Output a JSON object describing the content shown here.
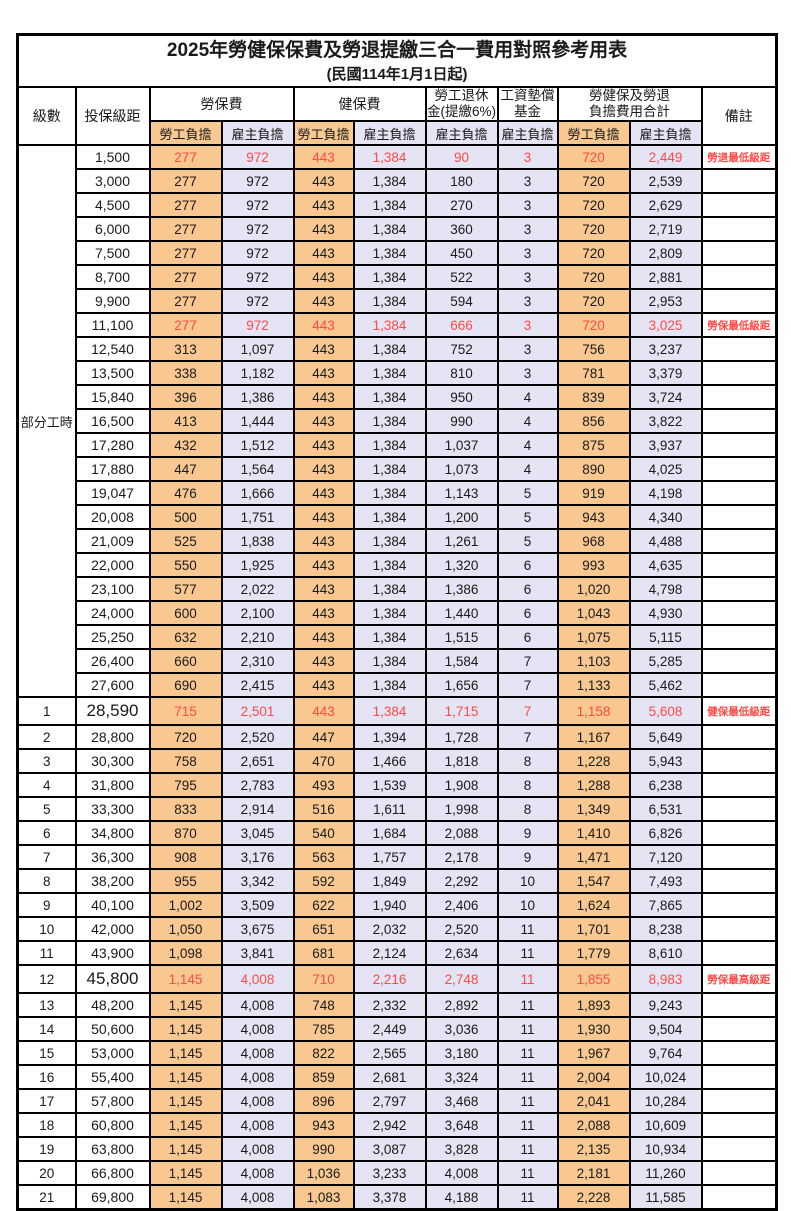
{
  "title": "2025年勞健保保費及勞退提繳三合一費用對照參考用表",
  "subtitle": "(民國114年1月1日起)",
  "colors": {
    "worker_column_bg": "#F8C890",
    "employer_column_bg": "#E4E4F4",
    "highlight_text": "#FF4A46",
    "border": "#000000"
  },
  "header": {
    "level": "級數",
    "bracket": "投保級距",
    "labor_ins": "勞保費",
    "health_ins": "健保費",
    "pension_line1": "勞工退休",
    "pension_line2": "金(提繳6%)",
    "wage_fund_line1": "工資墊償",
    "wage_fund_line2": "基金",
    "total_line1": "勞健保及勞退",
    "total_line2": "負擔費用合計",
    "remark": "備註",
    "worker": "勞工負擔",
    "employer": "雇主負擔"
  },
  "part_time_label": "部分工時",
  "part_time_rowspan": 23,
  "rows": [
    {
      "level": "",
      "bracket": "1,500",
      "values": [
        "277",
        "972",
        "443",
        "1,384",
        "90",
        "3",
        "720",
        "2,449"
      ],
      "remark": "勞退最低級距",
      "hl": true,
      "big": false
    },
    {
      "level": "",
      "bracket": "3,000",
      "values": [
        "277",
        "972",
        "443",
        "1,384",
        "180",
        "3",
        "720",
        "2,539"
      ],
      "remark": "",
      "hl": false,
      "big": false
    },
    {
      "level": "",
      "bracket": "4,500",
      "values": [
        "277",
        "972",
        "443",
        "1,384",
        "270",
        "3",
        "720",
        "2,629"
      ],
      "remark": "",
      "hl": false,
      "big": false
    },
    {
      "level": "",
      "bracket": "6,000",
      "values": [
        "277",
        "972",
        "443",
        "1,384",
        "360",
        "3",
        "720",
        "2,719"
      ],
      "remark": "",
      "hl": false,
      "big": false
    },
    {
      "level": "",
      "bracket": "7,500",
      "values": [
        "277",
        "972",
        "443",
        "1,384",
        "450",
        "3",
        "720",
        "2,809"
      ],
      "remark": "",
      "hl": false,
      "big": false
    },
    {
      "level": "",
      "bracket": "8,700",
      "values": [
        "277",
        "972",
        "443",
        "1,384",
        "522",
        "3",
        "720",
        "2,881"
      ],
      "remark": "",
      "hl": false,
      "big": false
    },
    {
      "level": "",
      "bracket": "9,900",
      "values": [
        "277",
        "972",
        "443",
        "1,384",
        "594",
        "3",
        "720",
        "2,953"
      ],
      "remark": "",
      "hl": false,
      "big": false
    },
    {
      "level": "",
      "bracket": "11,100",
      "values": [
        "277",
        "972",
        "443",
        "1,384",
        "666",
        "3",
        "720",
        "3,025"
      ],
      "remark": "勞保最低級距",
      "hl": true,
      "big": false
    },
    {
      "level": "",
      "bracket": "12,540",
      "values": [
        "313",
        "1,097",
        "443",
        "1,384",
        "752",
        "3",
        "756",
        "3,237"
      ],
      "remark": "",
      "hl": false,
      "big": false
    },
    {
      "level": "",
      "bracket": "13,500",
      "values": [
        "338",
        "1,182",
        "443",
        "1,384",
        "810",
        "3",
        "781",
        "3,379"
      ],
      "remark": "",
      "hl": false,
      "big": false
    },
    {
      "level": "",
      "bracket": "15,840",
      "values": [
        "396",
        "1,386",
        "443",
        "1,384",
        "950",
        "4",
        "839",
        "3,724"
      ],
      "remark": "",
      "hl": false,
      "big": false
    },
    {
      "level": "",
      "bracket": "16,500",
      "values": [
        "413",
        "1,444",
        "443",
        "1,384",
        "990",
        "4",
        "856",
        "3,822"
      ],
      "remark": "",
      "hl": false,
      "big": false
    },
    {
      "level": "",
      "bracket": "17,280",
      "values": [
        "432",
        "1,512",
        "443",
        "1,384",
        "1,037",
        "4",
        "875",
        "3,937"
      ],
      "remark": "",
      "hl": false,
      "big": false
    },
    {
      "level": "",
      "bracket": "17,880",
      "values": [
        "447",
        "1,564",
        "443",
        "1,384",
        "1,073",
        "4",
        "890",
        "4,025"
      ],
      "remark": "",
      "hl": false,
      "big": false
    },
    {
      "level": "",
      "bracket": "19,047",
      "values": [
        "476",
        "1,666",
        "443",
        "1,384",
        "1,143",
        "5",
        "919",
        "4,198"
      ],
      "remark": "",
      "hl": false,
      "big": false
    },
    {
      "level": "",
      "bracket": "20,008",
      "values": [
        "500",
        "1,751",
        "443",
        "1,384",
        "1,200",
        "5",
        "943",
        "4,340"
      ],
      "remark": "",
      "hl": false,
      "big": false
    },
    {
      "level": "",
      "bracket": "21,009",
      "values": [
        "525",
        "1,838",
        "443",
        "1,384",
        "1,261",
        "5",
        "968",
        "4,488"
      ],
      "remark": "",
      "hl": false,
      "big": false
    },
    {
      "level": "",
      "bracket": "22,000",
      "values": [
        "550",
        "1,925",
        "443",
        "1,384",
        "1,320",
        "6",
        "993",
        "4,635"
      ],
      "remark": "",
      "hl": false,
      "big": false
    },
    {
      "level": "",
      "bracket": "23,100",
      "values": [
        "577",
        "2,022",
        "443",
        "1,384",
        "1,386",
        "6",
        "1,020",
        "4,798"
      ],
      "remark": "",
      "hl": false,
      "big": false
    },
    {
      "level": "",
      "bracket": "24,000",
      "values": [
        "600",
        "2,100",
        "443",
        "1,384",
        "1,440",
        "6",
        "1,043",
        "4,930"
      ],
      "remark": "",
      "hl": false,
      "big": false
    },
    {
      "level": "",
      "bracket": "25,250",
      "values": [
        "632",
        "2,210",
        "443",
        "1,384",
        "1,515",
        "6",
        "1,075",
        "5,115"
      ],
      "remark": "",
      "hl": false,
      "big": false
    },
    {
      "level": "",
      "bracket": "26,400",
      "values": [
        "660",
        "2,310",
        "443",
        "1,384",
        "1,584",
        "7",
        "1,103",
        "5,285"
      ],
      "remark": "",
      "hl": false,
      "big": false
    },
    {
      "level": "",
      "bracket": "27,600",
      "values": [
        "690",
        "2,415",
        "443",
        "1,384",
        "1,656",
        "7",
        "1,133",
        "5,462"
      ],
      "remark": "",
      "hl": false,
      "big": false
    },
    {
      "level": "1",
      "bracket": "28,590",
      "values": [
        "715",
        "2,501",
        "443",
        "1,384",
        "1,715",
        "7",
        "1,158",
        "5,608"
      ],
      "remark": "健保最低級距",
      "hl": true,
      "big": true
    },
    {
      "level": "2",
      "bracket": "28,800",
      "values": [
        "720",
        "2,520",
        "447",
        "1,394",
        "1,728",
        "7",
        "1,167",
        "5,649"
      ],
      "remark": "",
      "hl": false,
      "big": false
    },
    {
      "level": "3",
      "bracket": "30,300",
      "values": [
        "758",
        "2,651",
        "470",
        "1,466",
        "1,818",
        "8",
        "1,228",
        "5,943"
      ],
      "remark": "",
      "hl": false,
      "big": false
    },
    {
      "level": "4",
      "bracket": "31,800",
      "values": [
        "795",
        "2,783",
        "493",
        "1,539",
        "1,908",
        "8",
        "1,288",
        "6,238"
      ],
      "remark": "",
      "hl": false,
      "big": false
    },
    {
      "level": "5",
      "bracket": "33,300",
      "values": [
        "833",
        "2,914",
        "516",
        "1,611",
        "1,998",
        "8",
        "1,349",
        "6,531"
      ],
      "remark": "",
      "hl": false,
      "big": false
    },
    {
      "level": "6",
      "bracket": "34,800",
      "values": [
        "870",
        "3,045",
        "540",
        "1,684",
        "2,088",
        "9",
        "1,410",
        "6,826"
      ],
      "remark": "",
      "hl": false,
      "big": false
    },
    {
      "level": "7",
      "bracket": "36,300",
      "values": [
        "908",
        "3,176",
        "563",
        "1,757",
        "2,178",
        "9",
        "1,471",
        "7,120"
      ],
      "remark": "",
      "hl": false,
      "big": false
    },
    {
      "level": "8",
      "bracket": "38,200",
      "values": [
        "955",
        "3,342",
        "592",
        "1,849",
        "2,292",
        "10",
        "1,547",
        "7,493"
      ],
      "remark": "",
      "hl": false,
      "big": false
    },
    {
      "level": "9",
      "bracket": "40,100",
      "values": [
        "1,002",
        "3,509",
        "622",
        "1,940",
        "2,406",
        "10",
        "1,624",
        "7,865"
      ],
      "remark": "",
      "hl": false,
      "big": false
    },
    {
      "level": "10",
      "bracket": "42,000",
      "values": [
        "1,050",
        "3,675",
        "651",
        "2,032",
        "2,520",
        "11",
        "1,701",
        "8,238"
      ],
      "remark": "",
      "hl": false,
      "big": false
    },
    {
      "level": "11",
      "bracket": "43,900",
      "values": [
        "1,098",
        "3,841",
        "681",
        "2,124",
        "2,634",
        "11",
        "1,779",
        "8,610"
      ],
      "remark": "",
      "hl": false,
      "big": false
    },
    {
      "level": "12",
      "bracket": "45,800",
      "values": [
        "1,145",
        "4,008",
        "710",
        "2,216",
        "2,748",
        "11",
        "1,855",
        "8,983"
      ],
      "remark": "勞保最高級距",
      "hl": true,
      "big": true
    },
    {
      "level": "13",
      "bracket": "48,200",
      "values": [
        "1,145",
        "4,008",
        "748",
        "2,332",
        "2,892",
        "11",
        "1,893",
        "9,243"
      ],
      "remark": "",
      "hl": false,
      "big": false
    },
    {
      "level": "14",
      "bracket": "50,600",
      "values": [
        "1,145",
        "4,008",
        "785",
        "2,449",
        "3,036",
        "11",
        "1,930",
        "9,504"
      ],
      "remark": "",
      "hl": false,
      "big": false
    },
    {
      "level": "15",
      "bracket": "53,000",
      "values": [
        "1,145",
        "4,008",
        "822",
        "2,565",
        "3,180",
        "11",
        "1,967",
        "9,764"
      ],
      "remark": "",
      "hl": false,
      "big": false
    },
    {
      "level": "16",
      "bracket": "55,400",
      "values": [
        "1,145",
        "4,008",
        "859",
        "2,681",
        "3,324",
        "11",
        "2,004",
        "10,024"
      ],
      "remark": "",
      "hl": false,
      "big": false
    },
    {
      "level": "17",
      "bracket": "57,800",
      "values": [
        "1,145",
        "4,008",
        "896",
        "2,797",
        "3,468",
        "11",
        "2,041",
        "10,284"
      ],
      "remark": "",
      "hl": false,
      "big": false
    },
    {
      "level": "18",
      "bracket": "60,800",
      "values": [
        "1,145",
        "4,008",
        "943",
        "2,942",
        "3,648",
        "11",
        "2,088",
        "10,609"
      ],
      "remark": "",
      "hl": false,
      "big": false
    },
    {
      "level": "19",
      "bracket": "63,800",
      "values": [
        "1,145",
        "4,008",
        "990",
        "3,087",
        "3,828",
        "11",
        "2,135",
        "10,934"
      ],
      "remark": "",
      "hl": false,
      "big": false
    },
    {
      "level": "20",
      "bracket": "66,800",
      "values": [
        "1,145",
        "4,008",
        "1,036",
        "3,233",
        "4,008",
        "11",
        "2,181",
        "11,260"
      ],
      "remark": "",
      "hl": false,
      "big": false
    },
    {
      "level": "21",
      "bracket": "69,800",
      "values": [
        "1,145",
        "4,008",
        "1,083",
        "3,378",
        "4,188",
        "11",
        "2,228",
        "11,585"
      ],
      "remark": "",
      "hl": false,
      "big": false
    }
  ]
}
